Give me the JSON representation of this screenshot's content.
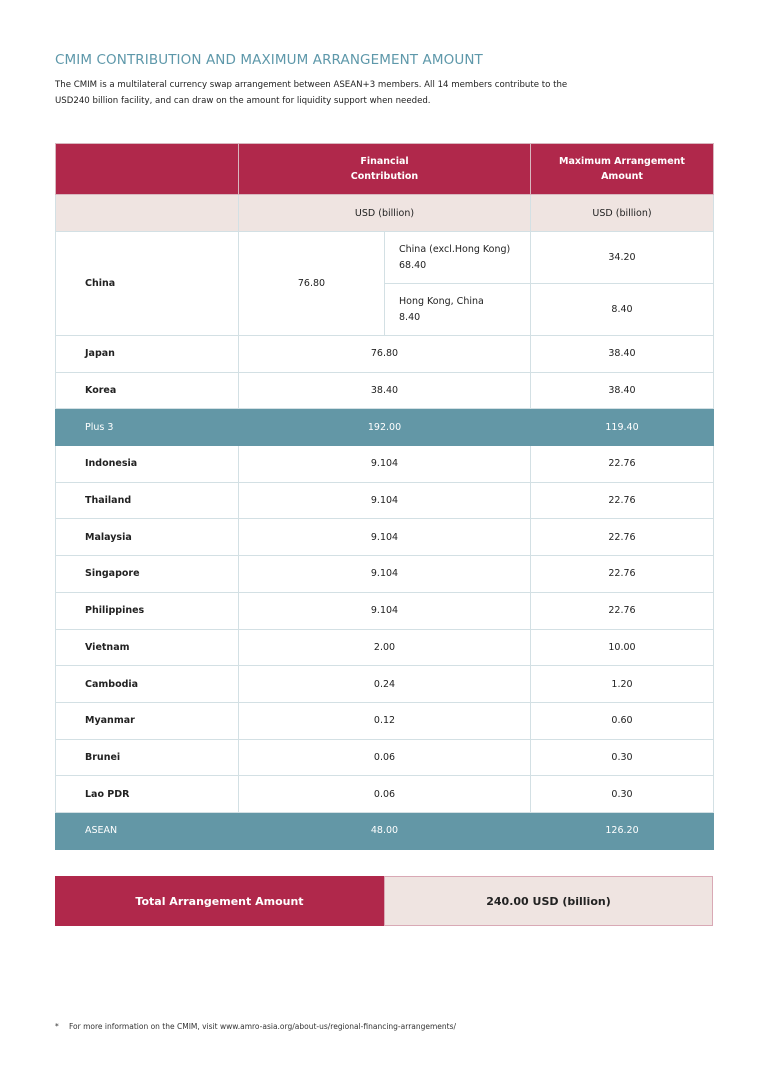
{
  "title": "CMIM CONTRIBUTION AND MAXIMUM ARRANGEMENT AMOUNT",
  "intro": "The CMIM is a multilateral currency swap arrangement between ASEAN+3 members. All 14 members contribute to the USD240 billion facility, and can draw on the amount for liquidity support when needed.",
  "table": {
    "headers": {
      "contribution": "Financial Contribution",
      "max": "Maximum Arrangement Amount"
    },
    "units": {
      "contribution": "USD (billion)",
      "max": "USD (billion)"
    },
    "china": {
      "name": "China",
      "contribution": "76.80",
      "sub": [
        {
          "label": "China (excl.Hong Kong)",
          "value": "68.40",
          "max": "34.20"
        },
        {
          "label": "Hong Kong, China",
          "value": "8.40",
          "max": "8.40"
        }
      ]
    },
    "rows": [
      {
        "name": "Japan",
        "contribution": "76.80",
        "max": "38.40"
      },
      {
        "name": "Korea",
        "contribution": "38.40",
        "max": "38.40"
      },
      {
        "name": "Plus 3",
        "contribution": "192.00",
        "max": "119.40",
        "summary": true
      },
      {
        "name": "Indonesia",
        "contribution": "9.104",
        "max": "22.76"
      },
      {
        "name": "Thailand",
        "contribution": "9.104",
        "max": "22.76"
      },
      {
        "name": "Malaysia",
        "contribution": "9.104",
        "max": "22.76"
      },
      {
        "name": "Singapore",
        "contribution": "9.104",
        "max": "22.76"
      },
      {
        "name": "Philippines",
        "contribution": "9.104",
        "max": "22.76"
      },
      {
        "name": "Vietnam",
        "contribution": "2.00",
        "max": "10.00"
      },
      {
        "name": "Cambodia",
        "contribution": "0.24",
        "max": "1.20"
      },
      {
        "name": "Myanmar",
        "contribution": "0.12",
        "max": "0.60"
      },
      {
        "name": "Brunei",
        "contribution": "0.06",
        "max": "0.30"
      },
      {
        "name": "Lao PDR",
        "contribution": "0.06",
        "max": "0.30"
      },
      {
        "name": "ASEAN",
        "contribution": "48.00",
        "max": "126.20",
        "summary": true
      }
    ]
  },
  "total": {
    "label": "Total Arrangement Amount",
    "value": "240.00 USD (billion)"
  },
  "footnote": {
    "marker": "*",
    "text": "For more information on the CMIM, visit www.amro-asia.org/about-us/regional-financing-arrangements/"
  },
  "colors": {
    "primary": "#b0284b",
    "summary": "#6397a6",
    "title": "#5e98aa",
    "shade": "#efe4e1"
  }
}
